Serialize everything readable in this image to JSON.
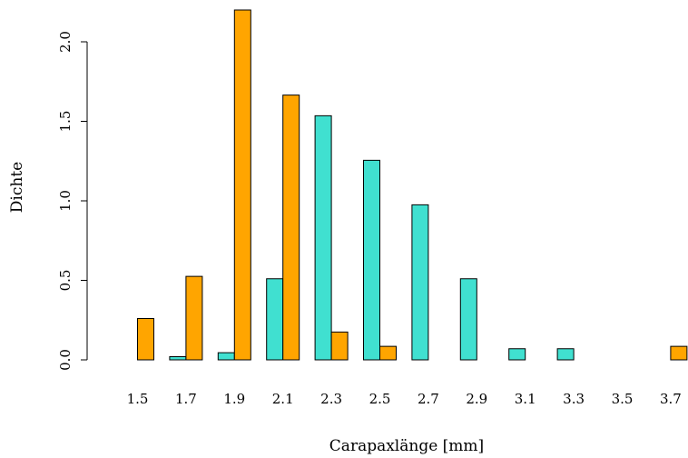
{
  "chart_data": {
    "type": "bar",
    "categories": [
      "1.5",
      "1.7",
      "1.9",
      "2.1",
      "2.3",
      "2.5",
      "2.7",
      "2.9",
      "3.1",
      "3.3",
      "3.5",
      "3.7"
    ],
    "series": [
      {
        "color": "#40E0D0",
        "values": [
          0.0,
          0.02,
          0.045,
          0.51,
          1.535,
          1.255,
          0.975,
          0.51,
          0.07,
          0.07,
          0.0,
          0.0
        ]
      },
      {
        "color": "#FFA500",
        "values": [
          0.26,
          0.525,
          2.2,
          1.665,
          0.175,
          0.085,
          0.0,
          0.0,
          0.0,
          0.0,
          0.0,
          0.085
        ]
      }
    ],
    "title": "",
    "xlabel": "Carapaxlänge [mm]",
    "ylabel": "Dichte",
    "ylim": [
      0,
      2.2
    ],
    "yticks": [
      "0.0",
      "0.5",
      "1.0",
      "1.5",
      "2.0"
    ],
    "grid": false,
    "legend": "none"
  }
}
